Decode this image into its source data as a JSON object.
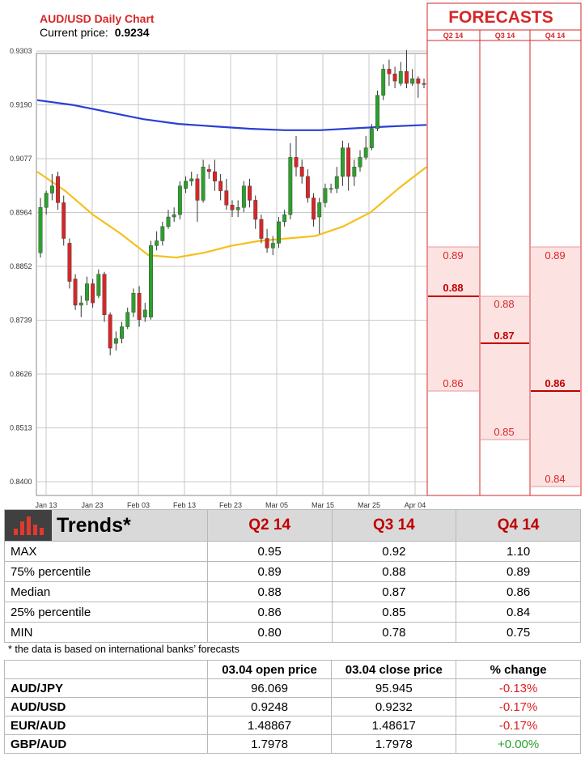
{
  "chart": {
    "title": "AUD/USD Daily Chart",
    "price_label": "Current price:",
    "price_value": "0.9234"
  },
  "forecasts": {
    "title": "FORECASTS",
    "columns": [
      "Q2 14",
      "Q3 14",
      "Q4 14"
    ],
    "q2": {
      "max": "0.89",
      "median": "0.88",
      "min": "0.86"
    },
    "q3": {
      "max": "0.88",
      "median": "0.87",
      "min": "0.85"
    },
    "q4": {
      "max": "0.89",
      "median": "0.86",
      "min": "0.84"
    }
  },
  "chart_data": {
    "type": "candlestick",
    "title": "AUD/USD Daily Chart",
    "yticks": [
      "0.9303",
      "0.9190",
      "0.9077",
      "0.8964",
      "0.8852",
      "0.8739",
      "0.8626",
      "0.8513",
      "0.8400"
    ],
    "xticks": [
      "Jan 13",
      "Jan 23",
      "Feb 03",
      "Feb 13",
      "Feb 23",
      "Mar 05",
      "Mar 15",
      "Mar 25",
      "Apr 04"
    ],
    "ylim": [
      0.84,
      0.9303
    ],
    "grid": true,
    "colors": {
      "up": "#2ca02c",
      "down": "#d62728",
      "ma_long": "#2a3fd4",
      "ma_short": "#f5c01a"
    },
    "candles": [
      [
        0.888,
        0.8975,
        0.887,
        0.8995
      ],
      [
        0.8975,
        0.9005,
        0.896,
        0.901
      ],
      [
        0.9005,
        0.902,
        0.899,
        0.9045
      ],
      [
        0.904,
        0.8985,
        0.897,
        0.905
      ],
      [
        0.8985,
        0.891,
        0.8895,
        0.9
      ],
      [
        0.89,
        0.882,
        0.8805,
        0.891
      ],
      [
        0.8825,
        0.877,
        0.876,
        0.8835
      ],
      [
        0.877,
        0.8775,
        0.8745,
        0.879
      ],
      [
        0.878,
        0.8815,
        0.877,
        0.883
      ],
      [
        0.8815,
        0.8775,
        0.8765,
        0.8825
      ],
      [
        0.879,
        0.8835,
        0.8785,
        0.8845
      ],
      [
        0.8835,
        0.875,
        0.8735,
        0.884
      ],
      [
        0.875,
        0.868,
        0.8665,
        0.8755
      ],
      [
        0.869,
        0.87,
        0.8675,
        0.8715
      ],
      [
        0.87,
        0.8725,
        0.869,
        0.8735
      ],
      [
        0.8725,
        0.8755,
        0.872,
        0.8765
      ],
      [
        0.8755,
        0.8795,
        0.8745,
        0.8805
      ],
      [
        0.8795,
        0.874,
        0.8725,
        0.881
      ],
      [
        0.8745,
        0.876,
        0.8735,
        0.8775
      ],
      [
        0.8745,
        0.8895,
        0.874,
        0.8905
      ],
      [
        0.8895,
        0.8905,
        0.8885,
        0.8925
      ],
      [
        0.8905,
        0.8935,
        0.8895,
        0.8945
      ],
      [
        0.8935,
        0.8955,
        0.893,
        0.897
      ],
      [
        0.8955,
        0.896,
        0.8945,
        0.8975
      ],
      [
        0.896,
        0.902,
        0.895,
        0.903
      ],
      [
        0.9015,
        0.903,
        0.9005,
        0.904
      ],
      [
        0.903,
        0.9035,
        0.902,
        0.905
      ],
      [
        0.9035,
        0.899,
        0.8945,
        0.9045
      ],
      [
        0.899,
        0.906,
        0.8985,
        0.9075
      ],
      [
        0.9055,
        0.905,
        0.9035,
        0.9065
      ],
      [
        0.905,
        0.903,
        0.901,
        0.9075
      ],
      [
        0.903,
        0.901,
        0.899,
        0.9045
      ],
      [
        0.901,
        0.898,
        0.897,
        0.9035
      ],
      [
        0.898,
        0.897,
        0.8955,
        0.899
      ],
      [
        0.897,
        0.8975,
        0.8955,
        0.899
      ],
      [
        0.8975,
        0.902,
        0.8965,
        0.903
      ],
      [
        0.902,
        0.899,
        0.8975,
        0.9035
      ],
      [
        0.899,
        0.895,
        0.893,
        0.9
      ],
      [
        0.895,
        0.891,
        0.89,
        0.896
      ],
      [
        0.891,
        0.889,
        0.888,
        0.893
      ],
      [
        0.889,
        0.89,
        0.8875,
        0.8915
      ],
      [
        0.89,
        0.8945,
        0.889,
        0.8955
      ],
      [
        0.8945,
        0.896,
        0.8935,
        0.897
      ],
      [
        0.896,
        0.908,
        0.895,
        0.911
      ],
      [
        0.908,
        0.906,
        0.904,
        0.9125
      ],
      [
        0.906,
        0.904,
        0.9025,
        0.9075
      ],
      [
        0.904,
        0.8995,
        0.8985,
        0.9055
      ],
      [
        0.8995,
        0.895,
        0.8935,
        0.9005
      ],
      [
        0.8955,
        0.8985,
        0.892,
        0.8995
      ],
      [
        0.8985,
        0.9015,
        0.8975,
        0.9025
      ],
      [
        0.9015,
        0.9015,
        0.9005,
        0.9025
      ],
      [
        0.9015,
        0.904,
        0.9005,
        0.906
      ],
      [
        0.904,
        0.91,
        0.902,
        0.9115
      ],
      [
        0.91,
        0.904,
        0.901,
        0.911
      ],
      [
        0.904,
        0.906,
        0.902,
        0.9075
      ],
      [
        0.906,
        0.908,
        0.905,
        0.9095
      ],
      [
        0.908,
        0.91,
        0.9075,
        0.9125
      ],
      [
        0.91,
        0.914,
        0.9095,
        0.915
      ],
      [
        0.914,
        0.921,
        0.9135,
        0.922
      ],
      [
        0.921,
        0.9265,
        0.92,
        0.9275
      ],
      [
        0.9265,
        0.9255,
        0.923,
        0.9285
      ],
      [
        0.9255,
        0.924,
        0.9225,
        0.927
      ],
      [
        0.9235,
        0.926,
        0.923,
        0.928
      ],
      [
        0.926,
        0.9235,
        0.9225,
        0.9305
      ],
      [
        0.9235,
        0.9245,
        0.923,
        0.9265
      ],
      [
        0.9245,
        0.9235,
        0.9205,
        0.925
      ],
      [
        0.9235,
        0.9234,
        0.9225,
        0.9245
      ]
    ],
    "ma_long": [
      0.92,
      0.919,
      0.9175,
      0.916,
      0.915,
      0.9145,
      0.914,
      0.9137,
      0.9137,
      0.9141,
      0.9145,
      0.9148
    ],
    "ma_short": [
      0.905,
      0.901,
      0.896,
      0.892,
      0.8875,
      0.887,
      0.888,
      0.8895,
      0.8905,
      0.891,
      0.8915,
      0.8935,
      0.8965,
      0.9015,
      0.906
    ]
  },
  "trends": {
    "title": "Trends*",
    "columns": [
      "Q2 14",
      "Q3 14",
      "Q4 14"
    ],
    "rows": [
      {
        "label": "MAX",
        "values": [
          "0.95",
          "0.92",
          "1.10"
        ]
      },
      {
        "label": "75% percentile",
        "values": [
          "0.89",
          "0.88",
          "0.89"
        ]
      },
      {
        "label": "Median",
        "values": [
          "0.88",
          "0.87",
          "0.86"
        ]
      },
      {
        "label": "25% percentile",
        "values": [
          "0.86",
          "0.85",
          "0.84"
        ]
      },
      {
        "label": "MIN",
        "values": [
          "0.80",
          "0.78",
          "0.75"
        ]
      }
    ],
    "note": "* the data is based on international banks’ forecasts"
  },
  "fx": {
    "columns": [
      "03.04 open price",
      "03.04 close price",
      "% change"
    ],
    "rows": [
      {
        "pair": "AUD/JPY",
        "open": "96.069",
        "close": "95.945",
        "change": "-0.13%",
        "dir": "neg"
      },
      {
        "pair": "AUD/USD",
        "open": "0.9248",
        "close": "0.9232",
        "change": "-0.17%",
        "dir": "neg"
      },
      {
        "pair": "EUR/AUD",
        "open": "1.48867",
        "close": "1.48617",
        "change": "-0.17%",
        "dir": "neg"
      },
      {
        "pair": "GBP/AUD",
        "open": "1.7978",
        "close": "1.7978",
        "change": "+0.00%",
        "dir": "pos"
      }
    ]
  }
}
